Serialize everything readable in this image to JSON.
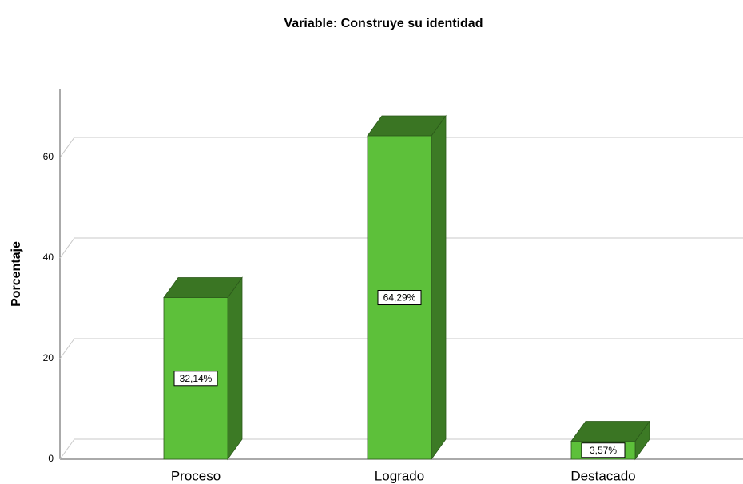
{
  "chart_data": {
    "type": "bar3d",
    "title": "Variable: Construye su identidad",
    "y_label": "Porcentaje",
    "categories": [
      "Proceso",
      "Logrado",
      "Destacado"
    ],
    "values": [
      32.14,
      64.29,
      3.57
    ],
    "value_labels": [
      "32,14%",
      "64,29%",
      "3,57%"
    ],
    "color": "#5dc03a",
    "ylim": [
      0,
      73.5
    ],
    "yticks": [
      0,
      20,
      40,
      60
    ],
    "grid": true
  }
}
